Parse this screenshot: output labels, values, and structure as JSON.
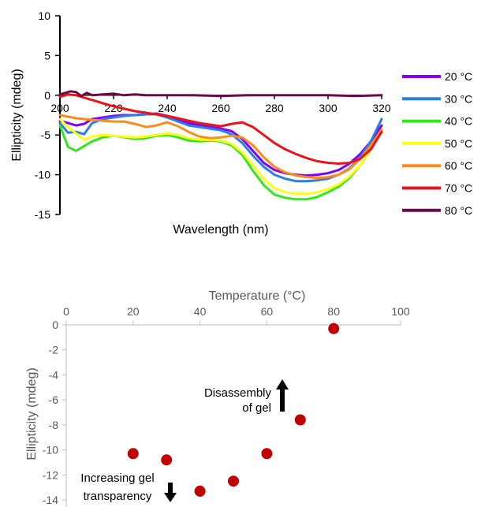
{
  "chart_data": [
    {
      "type": "line",
      "title": "",
      "xlabel": "Wavelength (nm)",
      "ylabel": "Ellipticity (mdeg)",
      "xlim": [
        200,
        320
      ],
      "ylim": [
        -15,
        10
      ],
      "xticks": [
        "200",
        "220",
        "240",
        "260",
        "280",
        "300",
        "320"
      ],
      "yticks": [
        "10",
        "5",
        "0",
        "-5",
        "-10",
        "-15"
      ],
      "legend_position": "right",
      "series": [
        {
          "name": "20 °C",
          "color": "#7f00ff",
          "x": [
            200,
            203,
            206,
            209,
            212,
            216,
            220,
            224,
            228,
            232,
            236,
            240,
            244,
            248,
            252,
            256,
            260,
            264,
            268,
            272,
            276,
            280,
            284,
            288,
            292,
            296,
            300,
            304,
            308,
            312,
            316,
            320
          ],
          "y": [
            -3.2,
            -3.5,
            -3.8,
            -3.6,
            -3.0,
            -2.8,
            -2.6,
            -2.5,
            -2.5,
            -2.4,
            -2.3,
            -2.6,
            -3.1,
            -3.5,
            -3.8,
            -4.0,
            -4.2,
            -4.5,
            -5.5,
            -7.0,
            -8.5,
            -9.4,
            -9.8,
            -10.0,
            -10.1,
            -10.0,
            -9.8,
            -9.4,
            -8.6,
            -7.4,
            -5.8,
            -3.8
          ]
        },
        {
          "name": "30 °C",
          "color": "#2e7de0",
          "x": [
            200,
            203,
            206,
            209,
            212,
            216,
            220,
            224,
            228,
            232,
            236,
            240,
            244,
            248,
            252,
            256,
            260,
            264,
            268,
            272,
            276,
            280,
            284,
            288,
            292,
            296,
            300,
            304,
            308,
            312,
            316,
            320
          ],
          "y": [
            -3.5,
            -4.7,
            -4.6,
            -4.9,
            -3.5,
            -3.0,
            -2.8,
            -2.6,
            -2.5,
            -2.4,
            -2.4,
            -2.8,
            -3.3,
            -3.8,
            -4.0,
            -4.2,
            -4.4,
            -4.9,
            -6.0,
            -7.6,
            -9.0,
            -10.0,
            -10.5,
            -10.8,
            -10.8,
            -10.7,
            -10.5,
            -10.0,
            -9.2,
            -7.8,
            -5.8,
            -3.0
          ]
        },
        {
          "name": "40 °C",
          "color": "#33e620",
          "x": [
            200,
            203,
            206,
            209,
            212,
            216,
            220,
            224,
            228,
            232,
            236,
            240,
            244,
            248,
            252,
            256,
            260,
            264,
            268,
            272,
            276,
            280,
            284,
            288,
            292,
            296,
            300,
            304,
            308,
            312,
            316,
            320
          ],
          "y": [
            -3.8,
            -6.5,
            -7.0,
            -6.4,
            -5.8,
            -5.3,
            -5.1,
            -5.3,
            -5.5,
            -5.4,
            -5.1,
            -5.0,
            -5.3,
            -5.7,
            -5.8,
            -5.7,
            -5.8,
            -6.3,
            -7.5,
            -9.5,
            -11.3,
            -12.5,
            -12.9,
            -13.1,
            -13.1,
            -12.8,
            -12.2,
            -11.5,
            -10.4,
            -8.8,
            -6.8,
            -4.5
          ]
        },
        {
          "name": "50 °C",
          "color": "#ffff1a",
          "x": [
            200,
            203,
            206,
            209,
            212,
            216,
            220,
            224,
            228,
            232,
            236,
            240,
            244,
            248,
            252,
            256,
            260,
            264,
            268,
            272,
            276,
            280,
            284,
            288,
            292,
            296,
            300,
            304,
            308,
            312,
            316,
            320
          ],
          "y": [
            -3.0,
            -4.0,
            -4.8,
            -5.6,
            -5.2,
            -5.0,
            -5.1,
            -5.2,
            -5.3,
            -5.2,
            -5.0,
            -4.8,
            -5.0,
            -5.4,
            -5.6,
            -5.6,
            -5.7,
            -6.1,
            -7.2,
            -8.8,
            -10.5,
            -11.7,
            -12.2,
            -12.4,
            -12.4,
            -12.2,
            -11.8,
            -11.2,
            -10.2,
            -8.8,
            -6.8,
            -4.3
          ]
        },
        {
          "name": "60 °C",
          "color": "#ff8c1a",
          "x": [
            200,
            203,
            206,
            209,
            212,
            216,
            220,
            224,
            228,
            232,
            236,
            240,
            244,
            248,
            252,
            256,
            260,
            264,
            268,
            272,
            276,
            280,
            284,
            288,
            292,
            296,
            300,
            304,
            308,
            312,
            316,
            320
          ],
          "y": [
            -2.5,
            -2.7,
            -2.9,
            -3.0,
            -3.1,
            -3.2,
            -3.3,
            -3.3,
            -3.6,
            -4.0,
            -3.8,
            -3.4,
            -3.9,
            -4.6,
            -5.2,
            -5.4,
            -5.3,
            -5.1,
            -5.3,
            -6.3,
            -7.8,
            -9.0,
            -9.7,
            -10.1,
            -10.3,
            -10.4,
            -10.3,
            -10.0,
            -9.3,
            -8.0,
            -6.3,
            -4.3
          ]
        },
        {
          "name": "70 °C",
          "color": "#e8141a",
          "x": [
            200,
            203,
            206,
            209,
            212,
            216,
            220,
            224,
            228,
            232,
            236,
            240,
            244,
            248,
            252,
            256,
            260,
            264,
            268,
            272,
            276,
            280,
            284,
            288,
            292,
            296,
            300,
            304,
            308,
            312,
            316,
            320
          ],
          "y": [
            -0.2,
            0.1,
            0.0,
            -0.3,
            -0.6,
            -1.0,
            -1.4,
            -1.7,
            -2.0,
            -2.2,
            -2.4,
            -2.6,
            -2.9,
            -3.2,
            -3.5,
            -3.7,
            -3.9,
            -3.6,
            -3.4,
            -4.0,
            -5.0,
            -6.0,
            -6.8,
            -7.4,
            -7.9,
            -8.3,
            -8.5,
            -8.6,
            -8.5,
            -8.0,
            -6.8,
            -4.6
          ]
        },
        {
          "name": "80 °C",
          "color": "#6b0a45",
          "x": [
            200,
            202,
            204,
            206,
            208,
            210,
            212,
            216,
            220,
            224,
            228,
            232,
            236,
            240,
            250,
            260,
            270,
            280,
            290,
            300,
            310,
            320
          ],
          "y": [
            0.1,
            0.3,
            0.5,
            0.4,
            -0.1,
            0.3,
            0.0,
            0.1,
            0.2,
            0.0,
            0.1,
            0.0,
            0.0,
            0.0,
            0.0,
            -0.1,
            0.0,
            0.0,
            0.0,
            0.0,
            -0.1,
            0.0
          ]
        }
      ]
    },
    {
      "type": "scatter",
      "title": "",
      "xlabel": "Temperature (°C)",
      "ylabel": "Ellipticity (mdeg)",
      "xlim": [
        0,
        100
      ],
      "ylim": [
        -14,
        0
      ],
      "xticks": [
        "0",
        "20",
        "40",
        "60",
        "80",
        "100"
      ],
      "yticks": [
        "0",
        "-2",
        "-4",
        "-6",
        "-8",
        "-10",
        "-12",
        "-14"
      ],
      "x_axis_position": "top",
      "marker_color": "#c00000",
      "x": [
        20,
        30,
        40,
        50,
        60,
        70,
        80
      ],
      "y": [
        -10.3,
        -10.8,
        -13.3,
        -12.5,
        -10.3,
        -7.6,
        -0.3
      ],
      "annotations": [
        {
          "line1": "Disassembly",
          "line2": "of gel",
          "arrow": "up"
        },
        {
          "line1": "Increasing gel",
          "line2": "transparency",
          "arrow": "down"
        }
      ]
    }
  ]
}
